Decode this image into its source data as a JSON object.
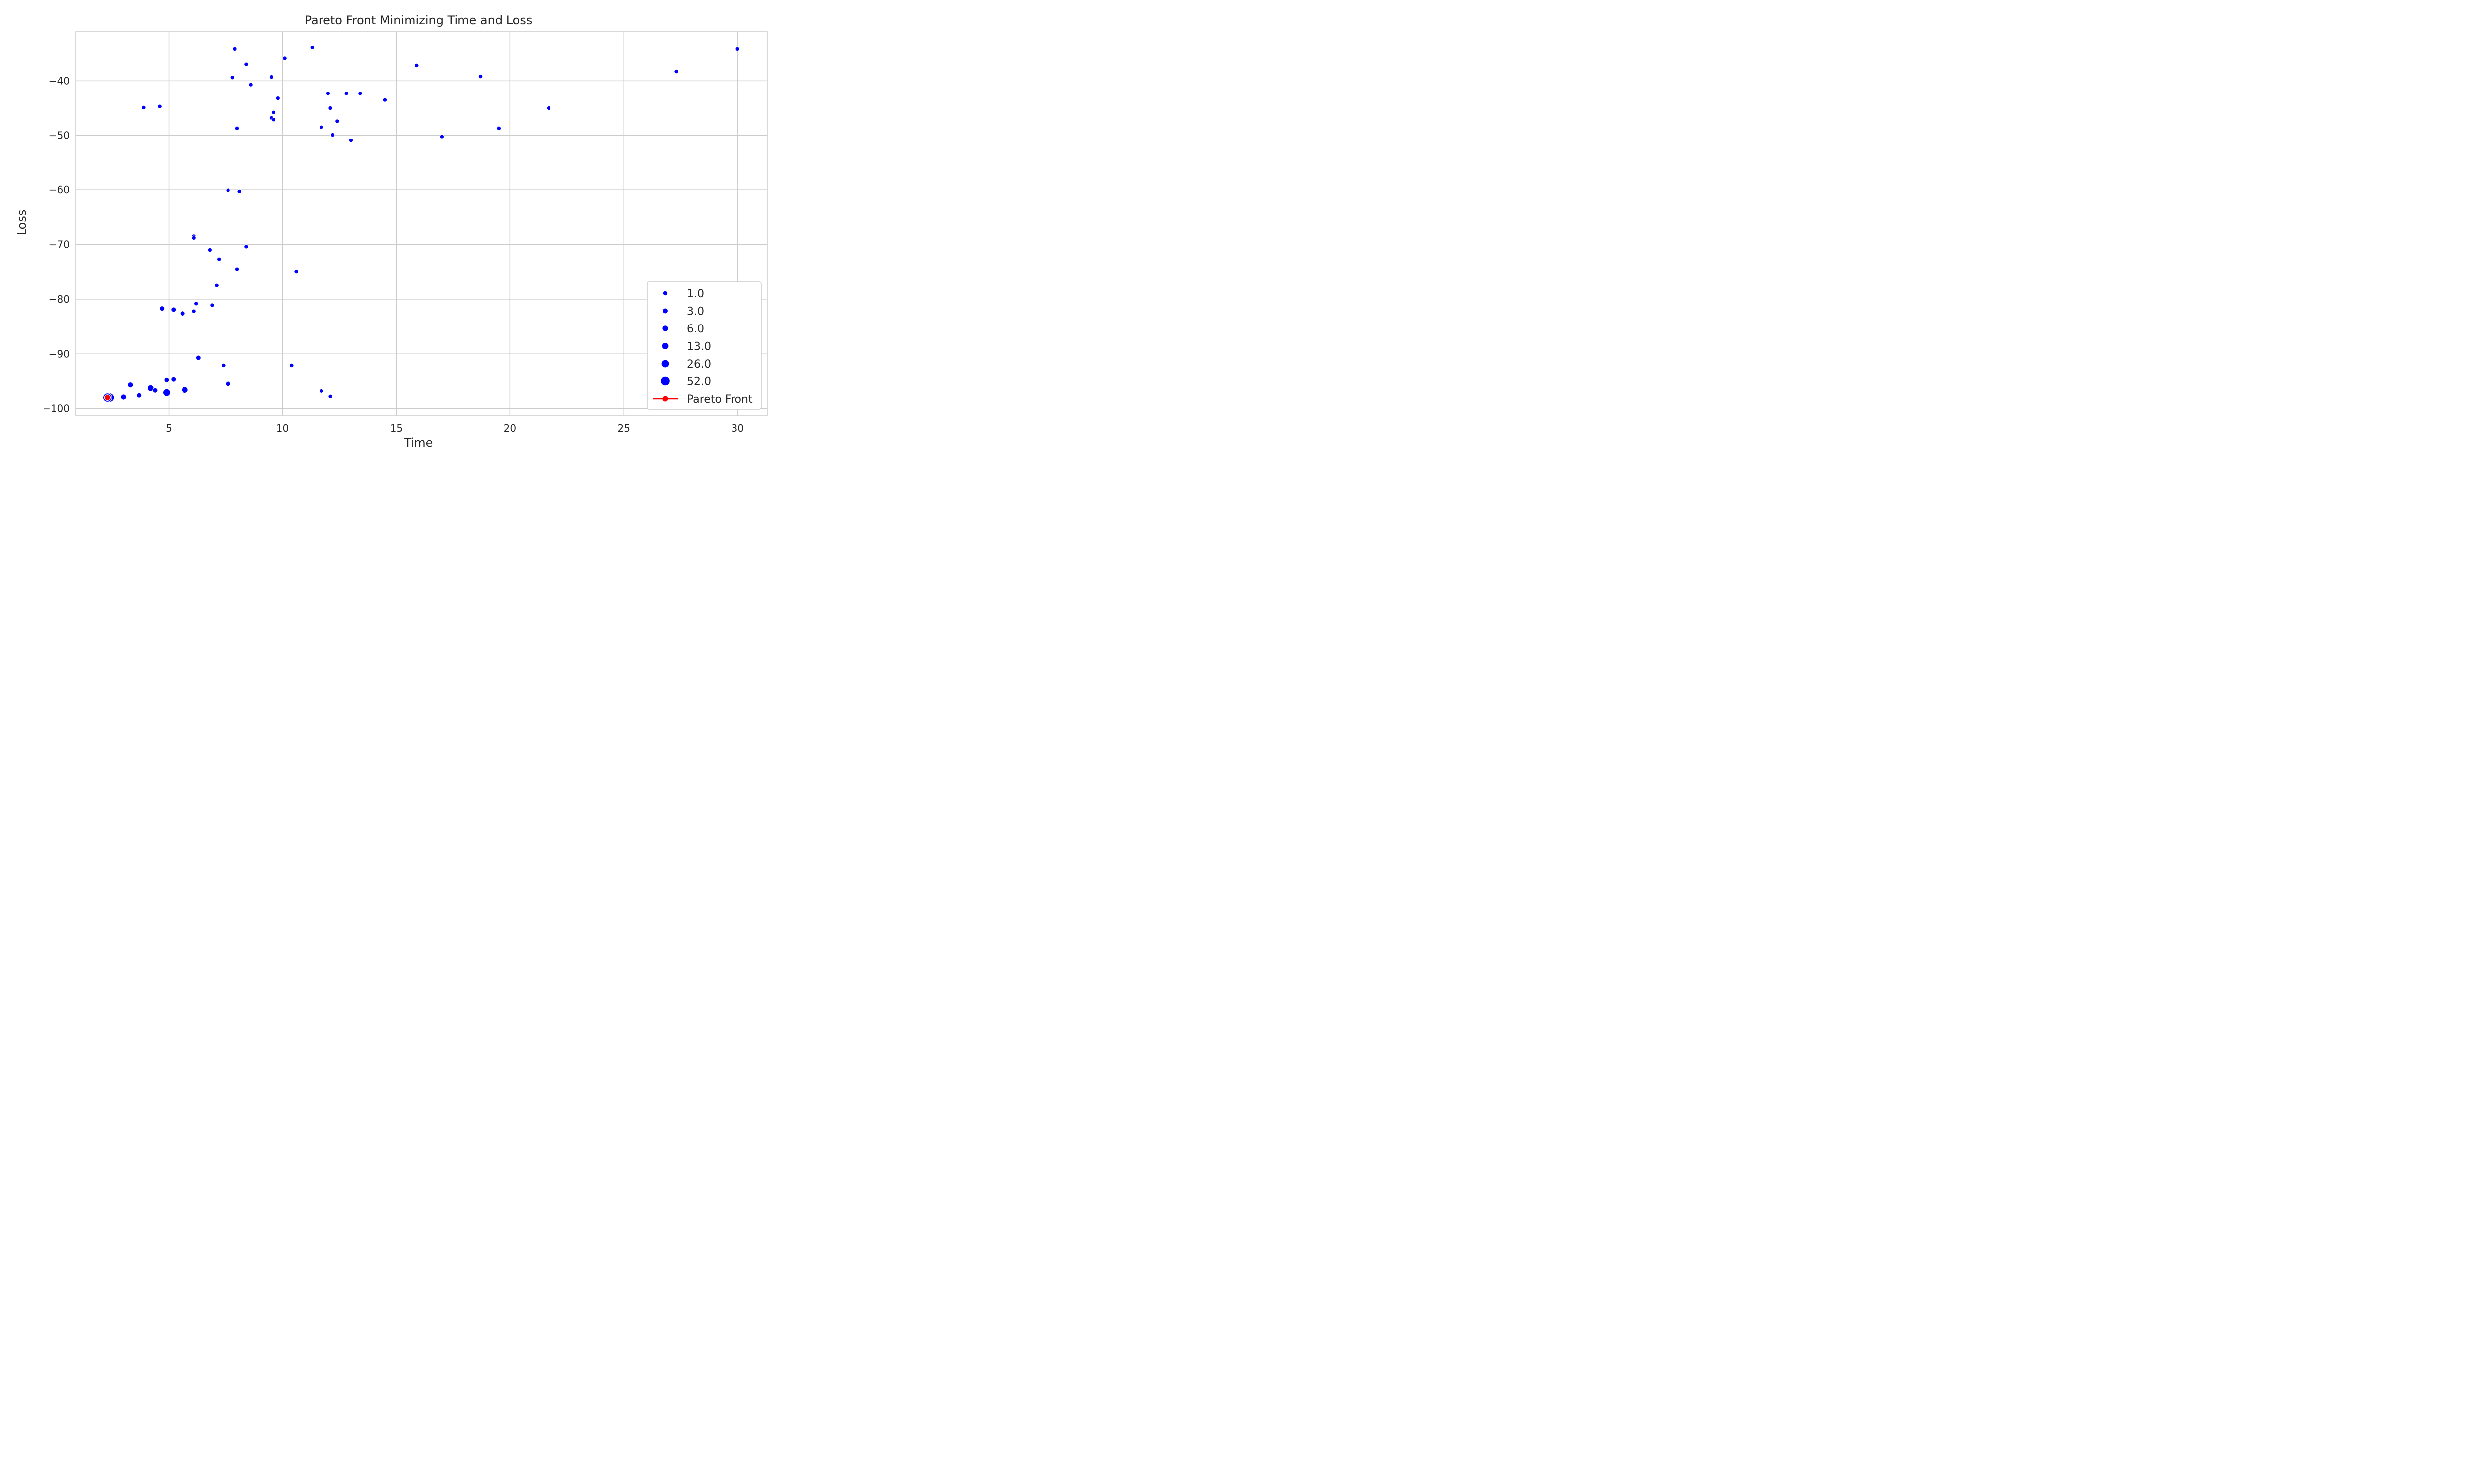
{
  "chart_data": {
    "type": "scatter",
    "title": "Pareto Front Minimizing Time and Loss",
    "xlabel": "Time",
    "ylabel": "Loss",
    "xlim": [
      0.9,
      31.3
    ],
    "ylim": [
      -101.3,
      -31.0
    ],
    "xticks": [
      5,
      10,
      15,
      20,
      25,
      30
    ],
    "yticks": [
      -100,
      -90,
      -80,
      -70,
      -60,
      -50,
      -40
    ],
    "grid": true,
    "colors": {
      "points": "#0000ff",
      "pareto": "#ff0000",
      "grid": "#cccccc",
      "axes": "#cccccc"
    },
    "legend": {
      "placement": "bottom-right",
      "size_entries": [
        "1.0",
        "3.0",
        "6.0",
        "13.0",
        "26.0",
        "52.0"
      ],
      "pareto_label": "Pareto Front"
    },
    "points": [
      {
        "x": 7.9,
        "y": -34.2,
        "s": 1
      },
      {
        "x": 11.3,
        "y": -33.9,
        "s": 1
      },
      {
        "x": 10.1,
        "y": -35.9,
        "s": 1
      },
      {
        "x": 8.4,
        "y": -37.0,
        "s": 1
      },
      {
        "x": 7.8,
        "y": -39.4,
        "s": 1
      },
      {
        "x": 9.5,
        "y": -39.3,
        "s": 1
      },
      {
        "x": 8.6,
        "y": -40.7,
        "s": 1
      },
      {
        "x": 9.8,
        "y": -43.2,
        "s": 1
      },
      {
        "x": 3.9,
        "y": -44.9,
        "s": 1
      },
      {
        "x": 4.6,
        "y": -44.7,
        "s": 1
      },
      {
        "x": 9.6,
        "y": -45.8,
        "s": 1
      },
      {
        "x": 9.5,
        "y": -46.8,
        "s": 1
      },
      {
        "x": 9.6,
        "y": -47.1,
        "s": 1
      },
      {
        "x": 8.0,
        "y": -48.7,
        "s": 1
      },
      {
        "x": 12.0,
        "y": -42.3,
        "s": 1
      },
      {
        "x": 12.8,
        "y": -42.3,
        "s": 1
      },
      {
        "x": 13.4,
        "y": -42.3,
        "s": 1
      },
      {
        "x": 12.1,
        "y": -45.0,
        "s": 1
      },
      {
        "x": 14.5,
        "y": -43.5,
        "s": 1
      },
      {
        "x": 12.4,
        "y": -47.4,
        "s": 1
      },
      {
        "x": 11.7,
        "y": -48.5,
        "s": 1
      },
      {
        "x": 12.2,
        "y": -49.9,
        "s": 1
      },
      {
        "x": 13.0,
        "y": -50.9,
        "s": 1
      },
      {
        "x": 15.9,
        "y": -37.2,
        "s": 1
      },
      {
        "x": 18.7,
        "y": -39.2,
        "s": 1
      },
      {
        "x": 17.0,
        "y": -50.2,
        "s": 1
      },
      {
        "x": 19.5,
        "y": -48.7,
        "s": 1
      },
      {
        "x": 21.7,
        "y": -45.0,
        "s": 1
      },
      {
        "x": 27.3,
        "y": -38.3,
        "s": 1
      },
      {
        "x": 30.0,
        "y": -34.2,
        "s": 1
      },
      {
        "x": 7.6,
        "y": -60.1,
        "s": 1
      },
      {
        "x": 8.1,
        "y": -60.3,
        "s": 1
      },
      {
        "x": 6.1,
        "y": -68.5,
        "s": 1
      },
      {
        "x": 6.1,
        "y": -68.8,
        "s": 1
      },
      {
        "x": 6.8,
        "y": -71.0,
        "s": 1
      },
      {
        "x": 7.2,
        "y": -72.7,
        "s": 1
      },
      {
        "x": 8.4,
        "y": -70.4,
        "s": 1
      },
      {
        "x": 8.0,
        "y": -74.5,
        "s": 1
      },
      {
        "x": 10.6,
        "y": -74.9,
        "s": 1
      },
      {
        "x": 7.1,
        "y": -77.5,
        "s": 1
      },
      {
        "x": 4.7,
        "y": -81.7,
        "s": 3
      },
      {
        "x": 5.2,
        "y": -81.9,
        "s": 3
      },
      {
        "x": 5.6,
        "y": -82.6,
        "s": 3
      },
      {
        "x": 6.1,
        "y": -82.2,
        "s": 1
      },
      {
        "x": 6.2,
        "y": -80.8,
        "s": 1
      },
      {
        "x": 6.9,
        "y": -81.1,
        "s": 1
      },
      {
        "x": 6.3,
        "y": -90.7,
        "s": 3
      },
      {
        "x": 7.4,
        "y": -92.1,
        "s": 1
      },
      {
        "x": 10.4,
        "y": -92.1,
        "s": 1
      },
      {
        "x": 7.6,
        "y": -95.5,
        "s": 3
      },
      {
        "x": 11.7,
        "y": -96.8,
        "s": 1
      },
      {
        "x": 12.1,
        "y": -97.8,
        "s": 1
      },
      {
        "x": 3.3,
        "y": -95.7,
        "s": 6
      },
      {
        "x": 4.2,
        "y": -96.3,
        "s": 13
      },
      {
        "x": 4.4,
        "y": -96.7,
        "s": 3
      },
      {
        "x": 4.9,
        "y": -94.8,
        "s": 3
      },
      {
        "x": 5.2,
        "y": -94.7,
        "s": 3
      },
      {
        "x": 5.7,
        "y": -96.6,
        "s": 13
      },
      {
        "x": 4.9,
        "y": -97.1,
        "s": 26
      },
      {
        "x": 3.0,
        "y": -97.9,
        "s": 6
      },
      {
        "x": 3.7,
        "y": -97.6,
        "s": 3
      },
      {
        "x": 2.4,
        "y": -98.0,
        "s": 52
      },
      {
        "x": 2.3,
        "y": -98.0,
        "s": 52
      }
    ],
    "pareto_front": [
      {
        "x": 2.3,
        "y": -98.0
      }
    ]
  }
}
